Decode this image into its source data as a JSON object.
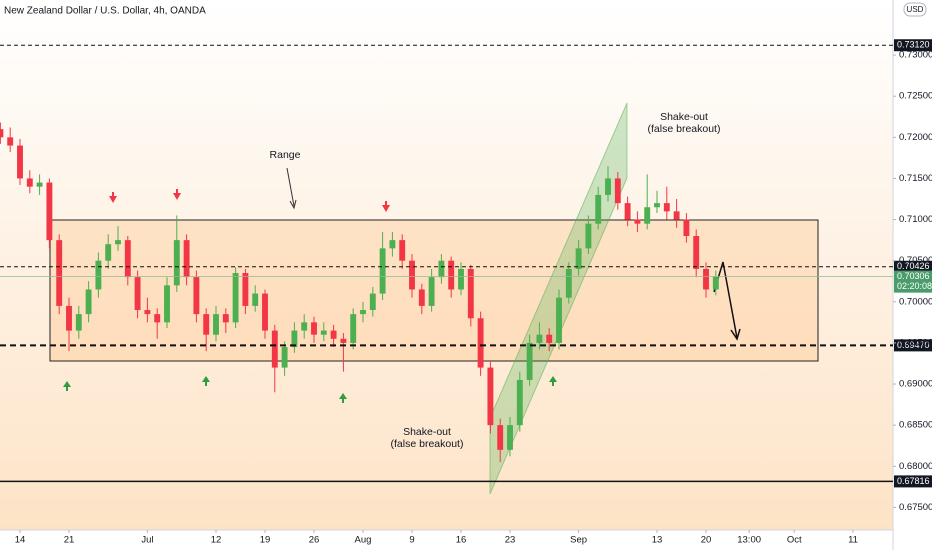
{
  "chart_data": {
    "type": "candlestick",
    "title": "New Zealand Dollar / U.S. Dollar, 4h, OANDA",
    "currency": "USD",
    "up_color": "#4caf50",
    "down_color": "#f23645",
    "grid": false,
    "x": [
      -2,
      -1,
      0,
      1,
      2,
      3,
      4,
      5,
      6,
      7,
      8,
      9,
      10,
      11,
      12,
      13,
      14,
      15,
      16,
      17,
      18,
      19,
      20,
      21,
      22,
      23,
      24,
      25,
      26,
      27,
      28,
      29,
      30,
      31,
      32,
      33,
      34,
      35,
      36,
      37,
      38,
      39,
      40,
      41,
      42,
      43,
      44,
      45,
      46,
      47,
      48,
      49,
      50,
      51,
      52,
      53,
      54,
      55,
      56,
      57,
      58,
      59,
      60,
      61,
      62,
      63,
      64,
      65,
      66,
      67,
      68,
      69,
      70,
      71
    ],
    "open": [
      0.721,
      0.72,
      0.719,
      0.715,
      0.714,
      0.7145,
      0.7075,
      0.6995,
      0.6965,
      0.6985,
      0.7015,
      0.705,
      0.707,
      0.7075,
      0.703,
      0.699,
      0.6985,
      0.6975,
      0.702,
      0.7075,
      0.703,
      0.6985,
      0.696,
      0.6985,
      0.6975,
      0.7035,
      0.6995,
      0.701,
      0.6965,
      0.692,
      0.6945,
      0.6965,
      0.6975,
      0.696,
      0.6965,
      0.6955,
      0.695,
      0.6985,
      0.699,
      0.701,
      0.7065,
      0.7075,
      0.705,
      0.7015,
      0.6995,
      0.703,
      0.705,
      0.7015,
      0.704,
      0.698,
      0.692,
      0.685,
      0.682,
      0.685,
      0.6905,
      0.695,
      0.696,
      0.695,
      0.7005,
      0.704,
      0.7065,
      0.7095,
      0.713,
      0.715,
      0.712,
      0.71,
      0.7095,
      0.7115,
      0.712,
      0.711,
      0.71,
      0.708,
      0.704,
      0.7015
    ],
    "high": [
      0.7218,
      0.7212,
      0.7198,
      0.716,
      0.7155,
      0.715,
      0.7082,
      0.7005,
      0.6995,
      0.7025,
      0.706,
      0.7082,
      0.7092,
      0.708,
      0.7038,
      0.7005,
      0.6992,
      0.703,
      0.7105,
      0.7082,
      0.7038,
      0.6992,
      0.6995,
      0.6992,
      0.7042,
      0.704,
      0.702,
      0.7015,
      0.6972,
      0.6952,
      0.6975,
      0.6985,
      0.6982,
      0.6975,
      0.6972,
      0.6962,
      0.6992,
      0.7,
      0.7018,
      0.7085,
      0.7085,
      0.7082,
      0.7058,
      0.7022,
      0.704,
      0.7058,
      0.7055,
      0.7048,
      0.7045,
      0.6988,
      0.6928,
      0.6858,
      0.686,
      0.6915,
      0.696,
      0.6975,
      0.6968,
      0.7015,
      0.7048,
      0.7075,
      0.7105,
      0.714,
      0.7165,
      0.7158,
      0.7128,
      0.711,
      0.7155,
      0.7135,
      0.714,
      0.7125,
      0.7108,
      0.7088,
      0.7048,
      0.7038
    ],
    "low": [
      0.7192,
      0.7182,
      0.7142,
      0.7132,
      0.713,
      0.7065,
      0.6985,
      0.694,
      0.6955,
      0.6975,
      0.7005,
      0.704,
      0.7062,
      0.702,
      0.698,
      0.6975,
      0.6955,
      0.6968,
      0.7012,
      0.702,
      0.6975,
      0.694,
      0.6952,
      0.6962,
      0.6968,
      0.6985,
      0.6988,
      0.6955,
      0.689,
      0.691,
      0.6938,
      0.6955,
      0.695,
      0.6952,
      0.6945,
      0.6915,
      0.6942,
      0.6975,
      0.6982,
      0.7002,
      0.7055,
      0.704,
      0.7005,
      0.6985,
      0.6988,
      0.7022,
      0.7005,
      0.7008,
      0.697,
      0.691,
      0.684,
      0.6805,
      0.6812,
      0.6842,
      0.6898,
      0.6942,
      0.694,
      0.6942,
      0.6998,
      0.7032,
      0.7058,
      0.7088,
      0.7122,
      0.7112,
      0.7092,
      0.7085,
      0.7088,
      0.7108,
      0.71,
      0.709,
      0.7072,
      0.703,
      0.7005,
      0.7008
    ],
    "close": [
      0.72,
      0.719,
      0.715,
      0.714,
      0.7145,
      0.7075,
      0.6995,
      0.6965,
      0.6985,
      0.7015,
      0.705,
      0.707,
      0.7075,
      0.703,
      0.699,
      0.6985,
      0.6975,
      0.702,
      0.7075,
      0.703,
      0.6985,
      0.696,
      0.6985,
      0.6975,
      0.7035,
      0.6995,
      0.701,
      0.6965,
      0.692,
      0.6945,
      0.6965,
      0.6975,
      0.696,
      0.6965,
      0.6955,
      0.695,
      0.6985,
      0.699,
      0.701,
      0.7065,
      0.7075,
      0.705,
      0.7015,
      0.6995,
      0.703,
      0.705,
      0.7015,
      0.704,
      0.698,
      0.692,
      0.685,
      0.682,
      0.685,
      0.6905,
      0.695,
      0.696,
      0.695,
      0.7005,
      0.704,
      0.7065,
      0.7095,
      0.713,
      0.715,
      0.712,
      0.71,
      0.7095,
      0.7115,
      0.712,
      0.711,
      0.71,
      0.708,
      0.704,
      0.7015,
      0.7031
    ],
    "xlim": [
      -2.04,
      89.08
    ],
    "ylim": [
      0.67225,
      0.7367
    ],
    "xticks": [
      {
        "value": 0,
        "label": "14"
      },
      {
        "value": 5,
        "label": "21"
      },
      {
        "value": 13,
        "label": "Jul"
      },
      {
        "value": 20,
        "label": "12"
      },
      {
        "value": 25,
        "label": "19"
      },
      {
        "value": 30,
        "label": "26"
      },
      {
        "value": 35,
        "label": "Aug"
      },
      {
        "value": 40,
        "label": "9"
      },
      {
        "value": 45,
        "label": "16"
      },
      {
        "value": 50,
        "label": "23"
      },
      {
        "value": 57,
        "label": "Sep"
      },
      {
        "value": 65,
        "label": "13"
      },
      {
        "value": 70,
        "label": "20"
      },
      {
        "value": 74.4,
        "label": "13:00"
      },
      {
        "value": 79,
        "label": "Oct"
      },
      {
        "value": 85,
        "label": "11"
      }
    ],
    "yticks": [
      {
        "value": 0.675,
        "label": "0.67500"
      },
      {
        "value": 0.68,
        "label": "0.68000"
      },
      {
        "value": 0.685,
        "label": "0.68500"
      },
      {
        "value": 0.69,
        "label": "0.69000"
      },
      {
        "value": 0.695,
        "label": "0.69500"
      },
      {
        "value": 0.7,
        "label": "0.70000"
      },
      {
        "value": 0.705,
        "label": "0.70500"
      },
      {
        "value": 0.71,
        "label": "0.71000"
      },
      {
        "value": 0.715,
        "label": "0.71500"
      },
      {
        "value": 0.72,
        "label": "0.72000"
      },
      {
        "value": 0.725,
        "label": "0.72500"
      },
      {
        "value": 0.73,
        "label": "0.73000"
      }
    ],
    "price_lines": [
      {
        "value": 0.7312,
        "label": "0.73120"
      },
      {
        "value": 0.70426,
        "label": "0.70426"
      },
      {
        "value": 0.6947,
        "label": "0.69470"
      },
      {
        "value": 0.67816,
        "label": "0.67816"
      }
    ],
    "last_price": {
      "value": 0.70306,
      "countdown": "02:20:08"
    },
    "annotations": [
      "Range",
      "Shake-out",
      "(false breakout)",
      "Shake-out",
      "(false breakout)"
    ]
  }
}
